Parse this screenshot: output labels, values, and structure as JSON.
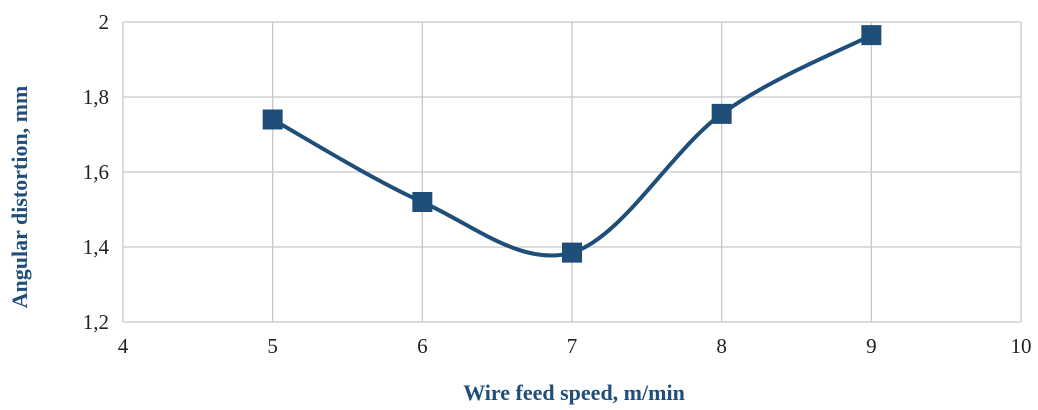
{
  "chart_data": {
    "type": "line",
    "x": [
      5,
      6,
      7,
      8,
      9
    ],
    "series": [
      {
        "values": [
          1.74,
          1.52,
          1.385,
          1.755,
          1.965
        ]
      }
    ],
    "xlabel": "Wire feed speed, m/min",
    "ylabel": "Angular distortion, mm",
    "xlim": [
      4,
      10
    ],
    "ylim": [
      1.2,
      2
    ],
    "xticks": [
      4,
      5,
      6,
      7,
      8,
      9,
      10
    ],
    "yticks": [
      1.2,
      1.4,
      1.6,
      1.8,
      2
    ],
    "xtick_labels": [
      "4",
      "5",
      "6",
      "7",
      "8",
      "9",
      "10"
    ],
    "ytick_labels": [
      "1,2",
      "1,4",
      "1,6",
      "1,8",
      "2"
    ],
    "grid": true,
    "smooth": true,
    "marker": "square",
    "colors": {
      "line": "#1f4e79",
      "grid": "#c8c8c8",
      "axis_title": "#1f4e79"
    }
  }
}
